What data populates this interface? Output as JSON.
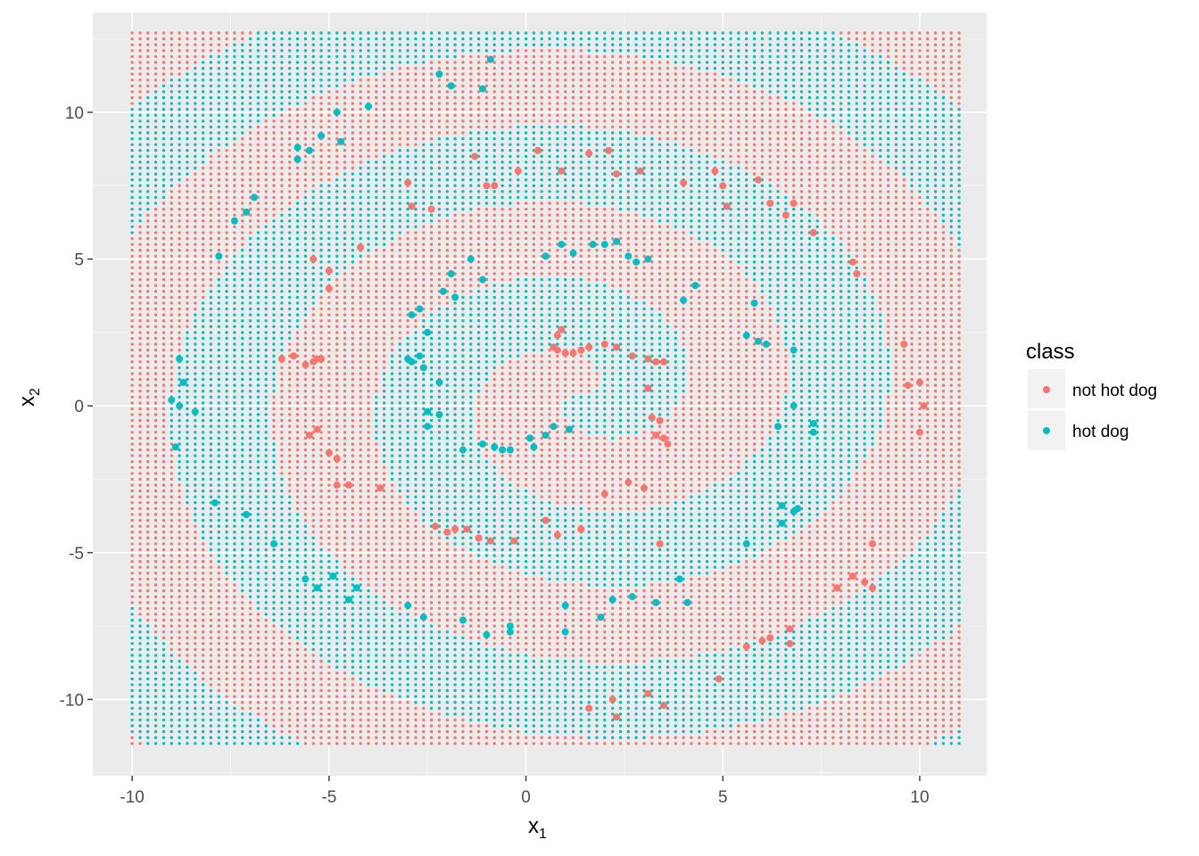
{
  "chart_data": {
    "type": "scatter",
    "title": "",
    "xlabel": "x",
    "xlabel_sub": "1",
    "ylabel": "x",
    "ylabel_sub": "2",
    "xlim": [
      -11.0,
      11.7
    ],
    "ylim": [
      -12.6,
      13.4
    ],
    "x_ticks": [
      -10,
      -5,
      0,
      5,
      10
    ],
    "y_ticks": [
      -10,
      -5,
      0,
      5,
      10
    ],
    "x_tick_labels": [
      "-10",
      "-5",
      "0",
      "5",
      "10"
    ],
    "y_tick_labels": [
      "-10",
      "-5",
      "0",
      "5",
      "10"
    ],
    "grid": true,
    "legend": {
      "title": "class",
      "placement": "right",
      "entries": [
        {
          "label": "not hot dog",
          "color": "#F8766D"
        },
        {
          "label": "hot dog",
          "color": "#00BFC4"
        }
      ]
    },
    "background_grid": {
      "description_of_values": "dense prediction grid covering the plotting area",
      "x_range": [
        -10,
        11
      ],
      "y_range": [
        -11.5,
        12.7
      ],
      "step": 0.2
    },
    "series": [
      {
        "name": "not hot dog",
        "color": "#F8766D",
        "points": [
          [
            -3.0,
            7.6
          ],
          [
            -2.9,
            6.8
          ],
          [
            -2.4,
            6.7
          ],
          [
            -1.3,
            8.5
          ],
          [
            -1.0,
            7.5
          ],
          [
            -0.8,
            7.5
          ],
          [
            -0.2,
            8.0
          ],
          [
            0.3,
            8.7
          ],
          [
            0.9,
            8.0
          ],
          [
            1.6,
            8.6
          ],
          [
            2.1,
            8.7
          ],
          [
            2.3,
            7.9
          ],
          [
            2.9,
            8.0
          ],
          [
            4.0,
            7.6
          ],
          [
            4.8,
            8.0
          ],
          [
            5.0,
            7.5
          ],
          [
            5.1,
            6.8
          ],
          [
            5.9,
            7.7
          ],
          [
            6.2,
            6.9
          ],
          [
            6.6,
            6.5
          ],
          [
            6.8,
            6.9
          ],
          [
            7.3,
            5.9
          ],
          [
            8.3,
            4.9
          ],
          [
            8.4,
            4.5
          ],
          [
            -4.2,
            5.4
          ],
          [
            -5.4,
            5.0
          ],
          [
            -5.0,
            4.6
          ],
          [
            -5.0,
            4.0
          ],
          [
            -6.2,
            1.6
          ],
          [
            -5.9,
            1.7
          ],
          [
            -5.6,
            1.4
          ],
          [
            -5.4,
            1.5
          ],
          [
            -5.3,
            1.6
          ],
          [
            -5.2,
            1.6
          ],
          [
            -5.5,
            -1.0
          ],
          [
            -5.3,
            -0.8
          ],
          [
            -5.0,
            -1.6
          ],
          [
            -4.8,
            -1.8
          ],
          [
            -4.8,
            -2.7
          ],
          [
            -4.5,
            -2.7
          ],
          [
            -3.7,
            -2.8
          ],
          [
            -2.3,
            -4.1
          ],
          [
            -2.0,
            -4.3
          ],
          [
            -1.8,
            -4.2
          ],
          [
            -1.5,
            -4.2
          ],
          [
            -1.2,
            -4.5
          ],
          [
            -0.9,
            -4.6
          ],
          [
            -0.3,
            -4.6
          ],
          [
            0.5,
            -3.9
          ],
          [
            0.8,
            -4.4
          ],
          [
            1.4,
            -4.2
          ],
          [
            2.0,
            -3.0
          ],
          [
            2.6,
            -2.6
          ],
          [
            3.0,
            -2.8
          ],
          [
            3.4,
            -4.7
          ],
          [
            0.8,
            2.4
          ],
          [
            0.9,
            2.6
          ],
          [
            0.7,
            2.0
          ],
          [
            0.8,
            1.9
          ],
          [
            1.0,
            1.8
          ],
          [
            1.2,
            1.8
          ],
          [
            1.4,
            1.9
          ],
          [
            1.6,
            2.0
          ],
          [
            2.0,
            2.1
          ],
          [
            2.3,
            2.0
          ],
          [
            2.7,
            1.7
          ],
          [
            3.1,
            1.6
          ],
          [
            3.3,
            1.5
          ],
          [
            3.5,
            1.5
          ],
          [
            3.1,
            0.6
          ],
          [
            3.2,
            -0.4
          ],
          [
            3.4,
            -0.5
          ],
          [
            3.3,
            -1.0
          ],
          [
            3.5,
            -1.1
          ],
          [
            3.6,
            -1.3
          ],
          [
            1.6,
            -10.3
          ],
          [
            2.2,
            -10.0
          ],
          [
            2.3,
            -10.6
          ],
          [
            3.1,
            -9.8
          ],
          [
            3.5,
            -10.2
          ],
          [
            4.9,
            -9.3
          ],
          [
            5.6,
            -8.2
          ],
          [
            6.0,
            -8.0
          ],
          [
            6.2,
            -7.9
          ],
          [
            6.7,
            -8.1
          ],
          [
            6.7,
            -7.6
          ],
          [
            7.9,
            -6.2
          ],
          [
            8.3,
            -5.8
          ],
          [
            8.6,
            -6.0
          ],
          [
            8.8,
            -6.2
          ],
          [
            8.8,
            -4.7
          ],
          [
            9.6,
            2.1
          ],
          [
            9.7,
            0.7
          ],
          [
            10.0,
            0.8
          ],
          [
            10.1,
            0.0
          ],
          [
            10.0,
            -0.9
          ]
        ]
      },
      {
        "name": "hot dog",
        "color": "#00BFC4",
        "points": [
          [
            -0.9,
            11.8
          ],
          [
            -1.1,
            10.8
          ],
          [
            -2.2,
            11.3
          ],
          [
            -1.9,
            10.9
          ],
          [
            -4.0,
            10.2
          ],
          [
            -4.8,
            10.0
          ],
          [
            -5.2,
            9.2
          ],
          [
            -4.7,
            9.0
          ],
          [
            -5.5,
            8.7
          ],
          [
            -5.8,
            8.8
          ],
          [
            -5.8,
            8.4
          ],
          [
            -6.9,
            7.1
          ],
          [
            -7.1,
            6.6
          ],
          [
            -7.4,
            6.3
          ],
          [
            -7.8,
            5.1
          ],
          [
            -8.8,
            1.6
          ],
          [
            -9.0,
            0.2
          ],
          [
            -8.8,
            0.0
          ],
          [
            -8.7,
            0.8
          ],
          [
            -8.4,
            -0.2
          ],
          [
            -8.9,
            -1.4
          ],
          [
            -7.9,
            -3.3
          ],
          [
            -7.1,
            -3.7
          ],
          [
            -6.4,
            -4.7
          ],
          [
            -5.6,
            -5.9
          ],
          [
            -5.3,
            -6.2
          ],
          [
            -4.9,
            -5.8
          ],
          [
            -4.5,
            -6.6
          ],
          [
            -4.3,
            -6.2
          ],
          [
            -3.0,
            -6.8
          ],
          [
            -2.6,
            -7.2
          ],
          [
            -1.6,
            -7.3
          ],
          [
            -1.0,
            -7.8
          ],
          [
            -0.4,
            -7.5
          ],
          [
            -0.4,
            -7.7
          ],
          [
            1.0,
            -6.8
          ],
          [
            1.0,
            -7.7
          ],
          [
            1.9,
            -7.2
          ],
          [
            2.2,
            -6.6
          ],
          [
            2.7,
            -6.5
          ],
          [
            3.3,
            -6.7
          ],
          [
            3.9,
            -5.9
          ],
          [
            4.1,
            -6.7
          ],
          [
            5.6,
            -4.7
          ],
          [
            6.5,
            -3.4
          ],
          [
            6.5,
            -4.0
          ],
          [
            6.8,
            -3.6
          ],
          [
            6.9,
            -3.5
          ],
          [
            6.4,
            -0.7
          ],
          [
            7.3,
            -0.6
          ],
          [
            7.3,
            -0.9
          ],
          [
            6.8,
            0.0
          ],
          [
            6.8,
            1.9
          ],
          [
            5.6,
            2.4
          ],
          [
            5.9,
            2.2
          ],
          [
            6.1,
            2.1
          ],
          [
            4.3,
            4.1
          ],
          [
            4.0,
            3.6
          ],
          [
            5.8,
            3.5
          ],
          [
            3.1,
            5.0
          ],
          [
            2.6,
            5.1
          ],
          [
            2.3,
            5.6
          ],
          [
            1.7,
            5.5
          ],
          [
            0.9,
            5.5
          ],
          [
            1.2,
            5.2
          ],
          [
            0.5,
            5.1
          ],
          [
            2.0,
            5.5
          ],
          [
            2.8,
            4.9
          ],
          [
            -1.4,
            5.0
          ],
          [
            -1.1,
            4.3
          ],
          [
            -1.9,
            4.5
          ],
          [
            -1.8,
            3.7
          ],
          [
            -2.1,
            3.9
          ],
          [
            -2.7,
            3.3
          ],
          [
            -2.9,
            3.1
          ],
          [
            -2.5,
            2.5
          ],
          [
            -2.7,
            1.7
          ],
          [
            -2.9,
            1.5
          ],
          [
            -3.0,
            1.6
          ],
          [
            -2.6,
            1.3
          ],
          [
            -2.2,
            0.8
          ],
          [
            -2.5,
            -0.2
          ],
          [
            -2.5,
            -0.7
          ],
          [
            -2.2,
            -0.3
          ],
          [
            -1.6,
            -1.5
          ],
          [
            -1.1,
            -1.3
          ],
          [
            -0.8,
            -1.4
          ],
          [
            -0.6,
            -1.5
          ],
          [
            -0.4,
            -1.5
          ],
          [
            0.1,
            -1.1
          ],
          [
            0.2,
            -1.4
          ],
          [
            0.5,
            -1.0
          ],
          [
            0.7,
            -0.7
          ],
          [
            1.1,
            -0.8
          ]
        ]
      }
    ]
  }
}
